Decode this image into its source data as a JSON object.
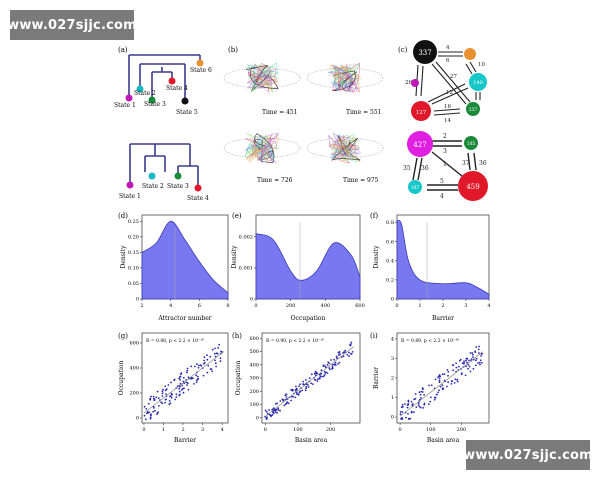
{
  "watermark": {
    "top": "www.027sjjc.com",
    "bottom": "www.027sjjc.com"
  },
  "panels": {
    "a": {
      "tag": "(a)",
      "tree_top_states": [
        "State 1",
        "State 2",
        "State 3",
        "State 4",
        "State 5",
        "State 6"
      ],
      "tree_bottom_states": [
        "State 1",
        "State 2",
        "State 3",
        "State 4"
      ]
    },
    "b": {
      "tag": "(b)",
      "times": [
        "Time = 451",
        "Time = 551",
        "Time = 726",
        "Time = 975"
      ]
    },
    "c": {
      "tag": "(c)",
      "top_nodes": [
        "337",
        "140",
        "237",
        "127"
      ],
      "top_edge_labels": [
        "4",
        "6",
        "10",
        "26",
        "27",
        "12",
        "16",
        "14"
      ],
      "bottom_nodes": [
        "427",
        "185",
        "459",
        "187"
      ],
      "bottom_edge_labels": [
        "2",
        "3",
        "1",
        "35",
        "36",
        "37",
        "36",
        "5",
        "4"
      ]
    },
    "d": {
      "tag": "(d)",
      "xlabel": "Attractor number",
      "ylabel": "Density",
      "xticks": [
        "2",
        "4",
        "6",
        "8"
      ],
      "yticks": [
        "0",
        "0.05",
        "0.10",
        "0.15",
        "0.20",
        "0.25"
      ]
    },
    "e": {
      "tag": "(e)",
      "xlabel": "Occupation",
      "ylabel": "Density",
      "xticks": [
        "0",
        "200",
        "400",
        "600"
      ],
      "yticks": [
        "0",
        "0.001",
        "0.002"
      ]
    },
    "f": {
      "tag": "(f)",
      "xlabel": "Barrier",
      "ylabel": "Density",
      "xticks": [
        "0",
        "1",
        "2",
        "3",
        "4"
      ],
      "yticks": [
        "0",
        "0.2",
        "0.4",
        "0.6",
        "0.8"
      ]
    },
    "g": {
      "tag": "(g)",
      "xlabel": "Barrier",
      "ylabel": "Occupation",
      "annotation": "R = 0.88,  p < 2.2 × 10⁻¹⁶",
      "xticks": [
        "0",
        "1",
        "2",
        "3",
        "4"
      ],
      "yticks": [
        "0",
        "200",
        "400",
        "600"
      ]
    },
    "h": {
      "tag": "(h)",
      "xlabel": "Basin area",
      "ylabel": "Occupation",
      "annotation": "R = 0.90,  p < 2.2 × 10⁻¹⁶",
      "xticks": [
        "0",
        "100",
        "200"
      ],
      "yticks": [
        "0",
        "100",
        "200",
        "300",
        "400",
        "500",
        "600"
      ]
    },
    "i": {
      "tag": "(i)",
      "xlabel": "Basin area",
      "ylabel": "Barrier",
      "annotation": "R = 0.89,  p < 2.2 × 10⁻¹⁶",
      "xticks": [
        "0",
        "100",
        "200"
      ],
      "yticks": [
        "0",
        "1",
        "2",
        "3",
        "4"
      ]
    }
  },
  "colors": {
    "density_fill": "#7878f0",
    "density_line": "#3a3ab8",
    "scatter_points": "#2a2ab0",
    "tree_lines": "#3a3a8c",
    "watermark_bg": "#7a7a7a"
  },
  "chart_data": [
    {
      "panel": "d",
      "type": "area",
      "x": [
        2,
        3,
        4,
        5,
        6,
        7,
        8
      ],
      "values": [
        0.15,
        0.18,
        0.25,
        0.19,
        0.12,
        0.06,
        0.02
      ],
      "xlim": [
        2,
        8
      ],
      "ylim": [
        0,
        0.27
      ]
    },
    {
      "panel": "e",
      "type": "area",
      "x": [
        0,
        100,
        200,
        260,
        350,
        450,
        550,
        600
      ],
      "values": [
        0.0021,
        0.0019,
        0.0009,
        0.0006,
        0.0009,
        0.0018,
        0.0014,
        0.0007
      ],
      "xlim": [
        0,
        600
      ],
      "ylim": [
        0,
        0.0027
      ]
    },
    {
      "panel": "f",
      "type": "area",
      "x": [
        0,
        0.2,
        0.5,
        1,
        2,
        3,
        3.5,
        4
      ],
      "values": [
        0.82,
        0.78,
        0.4,
        0.2,
        0.16,
        0.17,
        0.12,
        0.05
      ],
      "xlim": [
        0,
        4
      ],
      "ylim": [
        0,
        0.88
      ]
    },
    {
      "panel": "g",
      "type": "scatter",
      "xlim": [
        -0.1,
        4.3
      ],
      "ylim": [
        -40,
        680
      ]
    },
    {
      "panel": "h",
      "type": "scatter",
      "xlim": [
        -10,
        290
      ],
      "ylim": [
        -40,
        640
      ]
    },
    {
      "panel": "i",
      "type": "scatter",
      "xlim": [
        -10,
        290
      ],
      "ylim": [
        -0.3,
        4.3
      ]
    }
  ]
}
